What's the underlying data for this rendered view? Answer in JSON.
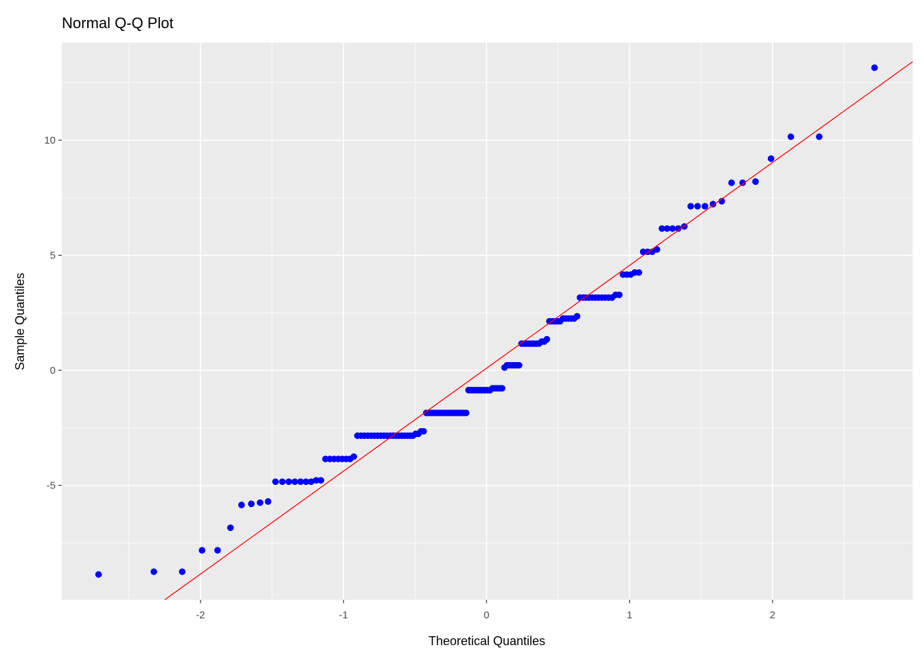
{
  "chart_data": {
    "type": "scatter",
    "title": "Normal Q-Q Plot",
    "xlabel": "Theoretical Quantiles",
    "ylabel": "Sample Quantiles",
    "xlim": [
      -2.97,
      2.98
    ],
    "ylim": [
      -9.97,
      14.24
    ],
    "x_ticks": [
      -2,
      -1,
      0,
      1,
      2
    ],
    "x_tick_labels": [
      "-2",
      "-1",
      "0",
      "1",
      "2"
    ],
    "y_ticks": [
      -5,
      0,
      5,
      10
    ],
    "y_tick_labels": [
      "-5",
      "0",
      "5",
      "10"
    ],
    "grid": true,
    "n": 150,
    "sample_levels": [
      {
        "value": -8.87,
        "count": 1
      },
      {
        "value": -8.75,
        "count": 2
      },
      {
        "value": -7.82,
        "count": 2
      },
      {
        "value": -6.84,
        "count": 1
      },
      {
        "value": -5.85,
        "count": 1
      },
      {
        "value": -5.8,
        "count": 1
      },
      {
        "value": -5.75,
        "count": 1
      },
      {
        "value": -5.7,
        "count": 1
      },
      {
        "value": -4.84,
        "count": 7
      },
      {
        "value": -4.78,
        "count": 2
      },
      {
        "value": -3.85,
        "count": 7
      },
      {
        "value": -3.75,
        "count": 1
      },
      {
        "value": -2.84,
        "count": 19
      },
      {
        "value": -2.76,
        "count": 2
      },
      {
        "value": -2.65,
        "count": 2
      },
      {
        "value": -1.85,
        "count": 17
      },
      {
        "value": -0.86,
        "count": 10
      },
      {
        "value": -0.78,
        "count": 5
      },
      {
        "value": 0.12,
        "count": 1
      },
      {
        "value": 0.22,
        "count": 6
      },
      {
        "value": 1.16,
        "count": 8
      },
      {
        "value": 1.25,
        "count": 2
      },
      {
        "value": 1.35,
        "count": 1
      },
      {
        "value": 2.13,
        "count": 5
      },
      {
        "value": 2.25,
        "count": 5
      },
      {
        "value": 2.35,
        "count": 1
      },
      {
        "value": 3.16,
        "count": 11
      },
      {
        "value": 3.28,
        "count": 2
      },
      {
        "value": 4.16,
        "count": 3
      },
      {
        "value": 4.25,
        "count": 2
      },
      {
        "value": 5.15,
        "count": 3
      },
      {
        "value": 5.25,
        "count": 1
      },
      {
        "value": 6.16,
        "count": 4
      },
      {
        "value": 6.25,
        "count": 1
      },
      {
        "value": 7.13,
        "count": 3
      },
      {
        "value": 7.22,
        "count": 1
      },
      {
        "value": 7.35,
        "count": 1
      },
      {
        "value": 8.15,
        "count": 2
      },
      {
        "value": 8.2,
        "count": 1
      },
      {
        "value": 9.2,
        "count": 1
      },
      {
        "value": 10.15,
        "count": 2
      },
      {
        "value": 13.15,
        "count": 1
      }
    ],
    "reference_line": {
      "intercept": 0.09,
      "slope": 4.47
    },
    "point_color": "#0000ff",
    "line_color": "#ff0000",
    "panel_background": "#ebebeb"
  }
}
